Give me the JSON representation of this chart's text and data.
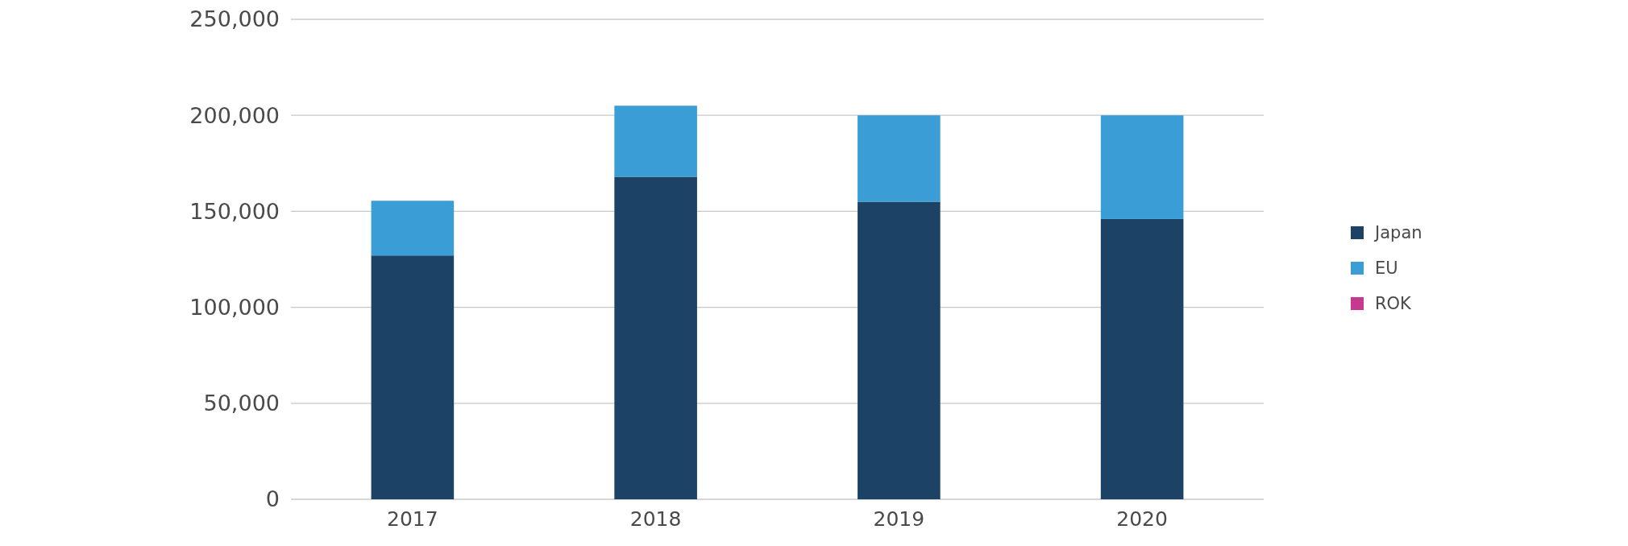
{
  "chart_data": {
    "type": "bar",
    "stacked": true,
    "categories": [
      "2017",
      "2018",
      "2019",
      "2020"
    ],
    "series": [
      {
        "name": "Japan",
        "color": "#1c4366",
        "values": [
          127000,
          168000,
          155000,
          146000
        ]
      },
      {
        "name": "EU",
        "color": "#3a9dd6",
        "values": [
          28500,
          37000,
          45000,
          54000
        ]
      },
      {
        "name": "ROK",
        "color": "#c7398f",
        "values": [
          0,
          0,
          0,
          0
        ]
      }
    ],
    "ylim": [
      0,
      250000
    ],
    "yticks": [
      {
        "value": 0,
        "label": "0"
      },
      {
        "value": 50000,
        "label": "50,000"
      },
      {
        "value": 100000,
        "label": "100,000"
      },
      {
        "value": 150000,
        "label": "150,000"
      },
      {
        "value": 200000,
        "label": "200,000"
      },
      {
        "value": 250000,
        "label": "250,000"
      }
    ],
    "grid": "y",
    "legend": "right"
  }
}
